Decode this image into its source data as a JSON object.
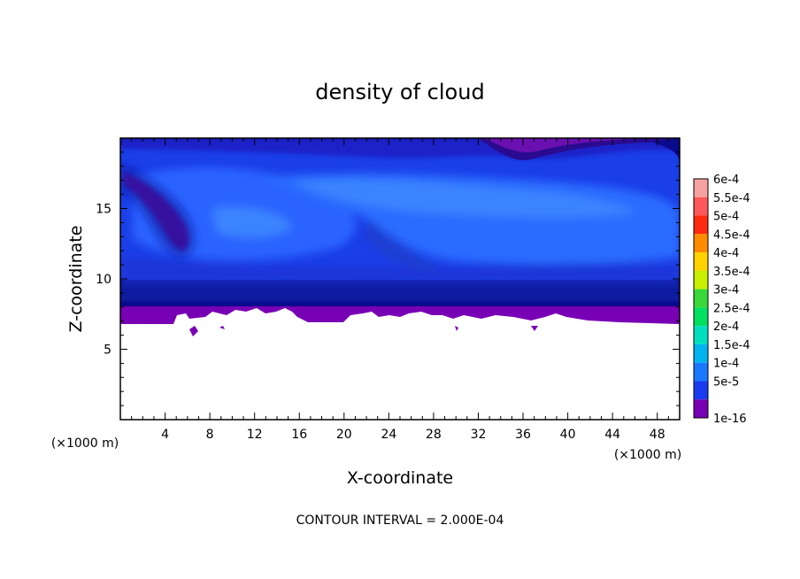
{
  "chart_data": {
    "type": "heatmap",
    "title": "density of cloud",
    "xlabel": "X-coordinate",
    "ylabel": "Z-coordinate",
    "x_unit": "(×1000 m)",
    "xlim": [
      0,
      50
    ],
    "ylim": [
      0,
      20
    ],
    "x_ticks": [
      "4",
      "8",
      "12",
      "16",
      "20",
      "24",
      "28",
      "32",
      "36",
      "40",
      "44",
      "48"
    ],
    "y_ticks": [
      "5",
      "10",
      "15"
    ],
    "contour_interval_text": "CONTOUR INTERVAL = 2.000E-04",
    "colorbar": {
      "levels": [
        {
          "label": "6e-4",
          "color": "#f7a0a0"
        },
        {
          "label": "5.5e-4",
          "color": "#ff5858"
        },
        {
          "label": "5e-4",
          "color": "#ff2a10"
        },
        {
          "label": "4.5e-4",
          "color": "#ff8c00"
        },
        {
          "label": "4e-4",
          "color": "#ffd200"
        },
        {
          "label": "3.5e-4",
          "color": "#c8f000"
        },
        {
          "label": "3e-4",
          "color": "#38d838"
        },
        {
          "label": "2.5e-4",
          "color": "#00e060"
        },
        {
          "label": "2e-4",
          "color": "#00e0c0"
        },
        {
          "label": "1.5e-4",
          "color": "#00b4f0"
        },
        {
          "label": "1e-4",
          "color": "#1a78ff"
        },
        {
          "label": "5e-5",
          "color": "#1a3cf0"
        },
        {
          "label": "1e-16",
          "color": "#7800b4"
        }
      ]
    },
    "field_description_colors": {
      "cloud_base_band": "#7800b4",
      "dark_band": "#0a0a8c",
      "main_cloud": "#1e46f0",
      "core": "#2a6cff",
      "upper_band": "#1a32d8"
    },
    "cloud_base_z": 7,
    "cloud_top_z": 20
  }
}
